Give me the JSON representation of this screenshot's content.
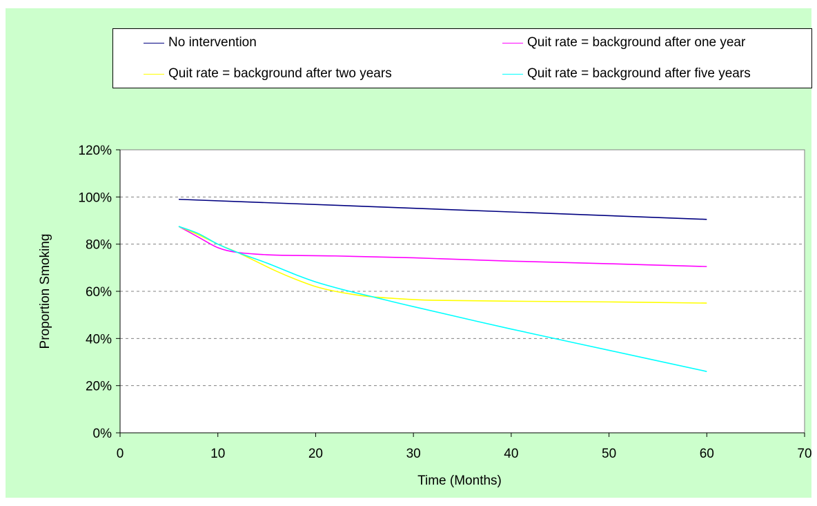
{
  "chart_data": {
    "type": "line",
    "title": "",
    "xlabel": "Time (Months)",
    "ylabel": "Proportion Smoking",
    "xlim": [
      0,
      70
    ],
    "ylim": [
      0,
      1.2
    ],
    "xticks": [
      0,
      10,
      20,
      30,
      40,
      50,
      60,
      70
    ],
    "yticks": [
      0,
      0.2,
      0.4,
      0.6,
      0.8,
      1.0,
      1.2
    ],
    "ytick_labels": [
      "0%",
      "20%",
      "40%",
      "60%",
      "80%",
      "100%",
      "120%"
    ],
    "grid": "horizontal-dashed",
    "legend_position": "top",
    "series": [
      {
        "name": "No intervention",
        "color": "#000080",
        "x": [
          6,
          60
        ],
        "y": [
          0.99,
          0.905
        ]
      },
      {
        "name": "Quit rate = background after one year",
        "color": "#ff00ff",
        "x": [
          6,
          8,
          10,
          12,
          15,
          18,
          22,
          30,
          40,
          50,
          60
        ],
        "y": [
          0.875,
          0.83,
          0.785,
          0.765,
          0.755,
          0.752,
          0.75,
          0.742,
          0.728,
          0.717,
          0.705
        ]
      },
      {
        "name": "Quit rate = background after two years",
        "color": "#ffff00",
        "x": [
          6,
          8,
          10,
          12,
          14,
          16,
          18,
          20,
          22,
          25,
          28,
          32,
          40,
          50,
          60
        ],
        "y": [
          0.875,
          0.84,
          0.8,
          0.765,
          0.725,
          0.685,
          0.65,
          0.62,
          0.6,
          0.58,
          0.57,
          0.562,
          0.558,
          0.555,
          0.55
        ]
      },
      {
        "name": "Quit rate = background after five years",
        "color": "#00ffff",
        "x": [
          6,
          8,
          10,
          12,
          15,
          18,
          20,
          23,
          26,
          30,
          40,
          50,
          60
        ],
        "y": [
          0.875,
          0.845,
          0.8,
          0.765,
          0.72,
          0.67,
          0.64,
          0.605,
          0.575,
          0.535,
          0.44,
          0.35,
          0.26
        ]
      }
    ]
  }
}
